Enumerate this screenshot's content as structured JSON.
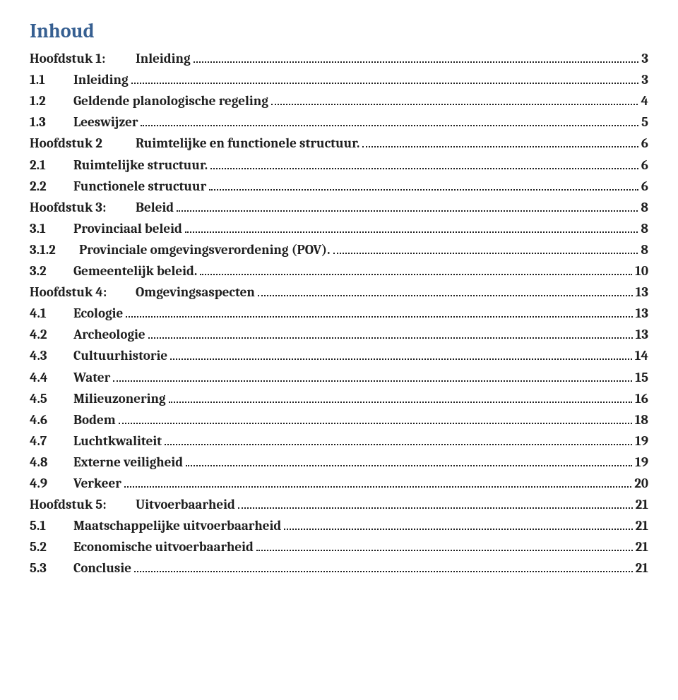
{
  "title": "Inhoud",
  "colors": {
    "title": "#365f91",
    "text": "#1f1f1f",
    "background": "#ffffff"
  },
  "typography": {
    "title_fontsize_pt": 21,
    "body_fontsize_pt": 14,
    "font_family": "Cambria / serif",
    "font_weight": "bold"
  },
  "toc": [
    {
      "level": 0,
      "num": "Hoofdstuk 1:",
      "label": "Inleiding",
      "page": "3"
    },
    {
      "level": 1,
      "num": "1.1",
      "label": "Inleiding",
      "page": "3"
    },
    {
      "level": 1,
      "num": "1.2",
      "label": "Geldende planologische regeling",
      "page": "4"
    },
    {
      "level": 1,
      "num": "1.3",
      "label": "Leeswijzer",
      "page": "5"
    },
    {
      "level": 0,
      "num": "Hoofdstuk 2",
      "label": "Ruimtelijke en functionele structuur.",
      "page": "6"
    },
    {
      "level": 1,
      "num": "2.1",
      "label": "Ruimtelijke structuur.",
      "page": "6"
    },
    {
      "level": 1,
      "num": "2.2",
      "label": "Functionele structuur",
      "page": "6"
    },
    {
      "level": 0,
      "num": "Hoofdstuk 3:",
      "label": "Beleid",
      "page": "8"
    },
    {
      "level": 1,
      "num": "3.1",
      "label": "Provinciaal beleid",
      "page": "8"
    },
    {
      "level": 2,
      "num": "3.1.2",
      "label": "Provinciale omgevingsverordening (POV).",
      "page": "8"
    },
    {
      "level": 1,
      "num": "3.2",
      "label": "Gemeentelijk beleid.",
      "page": "10"
    },
    {
      "level": 0,
      "num": "Hoofdstuk 4:",
      "label": "Omgevingsaspecten",
      "page": "13"
    },
    {
      "level": 1,
      "num": "4.1",
      "label": "Ecologie",
      "page": "13"
    },
    {
      "level": 1,
      "num": "4.2",
      "label": "Archeologie",
      "page": "13"
    },
    {
      "level": 1,
      "num": "4.3",
      "label": "Cultuurhistorie",
      "page": "14"
    },
    {
      "level": 1,
      "num": "4.4",
      "label": "Water",
      "page": "15"
    },
    {
      "level": 1,
      "num": "4.5",
      "label": "Milieuzonering",
      "page": "16"
    },
    {
      "level": 1,
      "num": "4.6",
      "label": "Bodem",
      "page": "18"
    },
    {
      "level": 1,
      "num": "4.7",
      "label": "Luchtkwaliteit",
      "page": "19"
    },
    {
      "level": 1,
      "num": "4.8",
      "label": "Externe veiligheid",
      "page": "19"
    },
    {
      "level": 1,
      "num": "4.9",
      "label": "Verkeer",
      "page": "20"
    },
    {
      "level": 0,
      "num": "Hoofdstuk 5:",
      "label": "Uitvoerbaarheid",
      "page": "21"
    },
    {
      "level": 1,
      "num": "5.1",
      "label": "Maatschappelijke uitvoerbaarheid",
      "page": "21"
    },
    {
      "level": 1,
      "num": "5.2",
      "label": "Economische uitvoerbaarheid",
      "page": "21"
    },
    {
      "level": 1,
      "num": "5.3",
      "label": "Conclusie",
      "page": "21"
    }
  ]
}
